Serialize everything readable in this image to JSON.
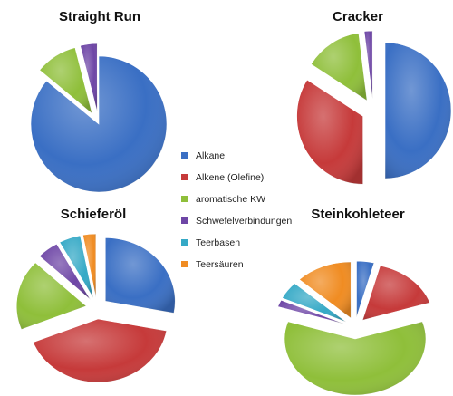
{
  "legend": [
    {
      "label": "Alkane",
      "color": "#3a6fc4"
    },
    {
      "label": "Alkene (Olefine)",
      "color": "#c63a3a"
    },
    {
      "label": "aromatische KW",
      "color": "#8fbf3a"
    },
    {
      "label": "Schwefelverbindungen",
      "color": "#6e46a6"
    },
    {
      "label": "Teerbasen",
      "color": "#35a9c6"
    },
    {
      "label": "Teersäuren",
      "color": "#f08c22"
    }
  ],
  "chart_data": [
    {
      "type": "pie",
      "title": "Straight Run",
      "categories": [
        "Alkane",
        "Alkene (Olefine)",
        "aromatische KW",
        "Schwefelverbindungen",
        "Teerbasen",
        "Teersäuren"
      ],
      "values": [
        86,
        0,
        10,
        4,
        0,
        0
      ],
      "exploded": [
        "aromatische KW",
        "Schwefelverbindungen"
      ]
    },
    {
      "type": "pie",
      "title": "Cracker",
      "categories": [
        "Alkane",
        "Alkene (Olefine)",
        "aromatische KW",
        "Schwefelverbindungen",
        "Teerbasen",
        "Teersäuren"
      ],
      "values": [
        50,
        34,
        14,
        2,
        0,
        0
      ],
      "exploded": [
        "Alkane",
        "Alkene (Olefine)",
        "aromatische KW",
        "Schwefelverbindungen"
      ]
    },
    {
      "type": "pie",
      "title": "Schieferöl",
      "categories": [
        "Alkane",
        "Alkene (Olefine)",
        "aromatische KW",
        "Schwefelverbindungen",
        "Teerbasen",
        "Teersäuren"
      ],
      "values": [
        28,
        41,
        18,
        5,
        5,
        3
      ],
      "exploded": [
        "Alkane",
        "Alkene (Olefine)",
        "aromatische KW",
        "Schwefelverbindungen",
        "Teerbasen",
        "Teersäuren"
      ]
    },
    {
      "type": "pie",
      "title": "Steinkohleteer",
      "categories": [
        "Alkane",
        "Alkene (Olefine)",
        "aromatische KW",
        "Schwefelverbindungen",
        "Teerbasen",
        "Teersäuren"
      ],
      "values": [
        4,
        16,
        60,
        2,
        5,
        13
      ],
      "exploded": [
        "Alkane",
        "Alkene (Olefine)",
        "aromatische KW",
        "Schwefelverbindungen",
        "Teerbasen",
        "Teersäuren"
      ]
    }
  ]
}
